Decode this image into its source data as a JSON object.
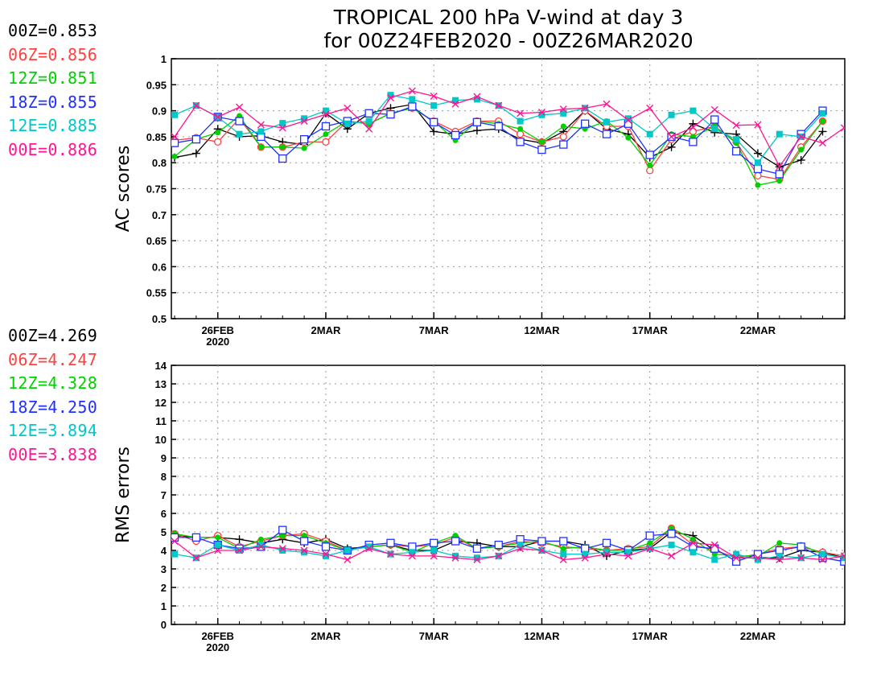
{
  "title": {
    "line1": "TROPICAL 200 hPa V-wind at day 3",
    "line2": "for 00Z24FEB2020 - 00Z26MAR2020"
  },
  "colors": {
    "00Z": "#000000",
    "06Z": "#ff4040",
    "12Z": "#00d000",
    "18Z": "#2030ff",
    "12E": "#00c8c8",
    "00E": "#ff1493"
  },
  "chart_data": [
    {
      "type": "line",
      "ylabel": "AC scores",
      "ylim": [
        0.5,
        1.0
      ],
      "yticks": [
        "0.5",
        "0.55",
        "0.6",
        "0.65",
        "0.7",
        "0.75",
        "0.8",
        "0.85",
        "0.9",
        "0.95",
        "1"
      ],
      "xticks": [
        {
          "day": 2,
          "label": "26FEB",
          "sublabel": "2020"
        },
        {
          "day": 7,
          "label": "2MAR",
          "sublabel": ""
        },
        {
          "day": 12,
          "label": "7MAR",
          "sublabel": ""
        },
        {
          "day": 17,
          "label": "12MAR",
          "sublabel": ""
        },
        {
          "day": 22,
          "label": "17MAR",
          "sublabel": ""
        },
        {
          "day": 27,
          "label": "22MAR",
          "sublabel": ""
        }
      ],
      "xlim_days": [
        0,
        31
      ],
      "grid": true,
      "legend": [
        {
          "key": "00Z",
          "text": "00Z=0.853"
        },
        {
          "key": "06Z",
          "text": "06Z=0.856"
        },
        {
          "key": "12Z",
          "text": "12Z=0.851"
        },
        {
          "key": "18Z",
          "text": "18Z=0.855"
        },
        {
          "key": "12E",
          "text": "12E=0.885"
        },
        {
          "key": "00E",
          "text": "00E=0.886"
        }
      ],
      "series": [
        {
          "key": "00Z",
          "marker": "plus",
          "values": [
            0.81,
            0.818,
            0.865,
            0.85,
            0.852,
            0.84,
            0.835,
            0.895,
            0.865,
            0.895,
            0.905,
            0.912,
            0.86,
            0.855,
            0.862,
            0.865,
            0.845,
            0.838,
            0.86,
            0.9,
            0.865,
            0.855,
            0.81,
            0.83,
            0.875,
            0.858,
            0.855,
            0.818,
            0.792,
            0.805,
            0.86
          ]
        },
        {
          "key": "06Z",
          "marker": "circle",
          "values": [
            0.843,
            0.848,
            0.84,
            0.885,
            0.83,
            0.83,
            0.84,
            0.84,
            0.88,
            0.875,
            0.895,
            0.905,
            0.88,
            0.86,
            0.88,
            0.88,
            0.855,
            0.84,
            0.85,
            0.9,
            0.87,
            0.87,
            0.785,
            0.845,
            0.86,
            0.87,
            0.84,
            0.775,
            0.768,
            0.83,
            0.88
          ]
        },
        {
          "key": "12Z",
          "marker": "dot",
          "values": [
            0.812,
            0.845,
            0.858,
            0.89,
            0.83,
            0.83,
            0.828,
            0.855,
            0.88,
            0.875,
            0.895,
            0.905,
            0.88,
            0.843,
            0.88,
            0.875,
            0.865,
            0.84,
            0.87,
            0.865,
            0.88,
            0.848,
            0.795,
            0.855,
            0.85,
            0.87,
            0.838,
            0.757,
            0.765,
            0.825,
            0.88
          ]
        },
        {
          "key": "18Z",
          "marker": "square",
          "values": [
            0.838,
            0.845,
            0.888,
            0.88,
            0.85,
            0.808,
            0.845,
            0.87,
            0.88,
            0.895,
            0.893,
            0.908,
            0.878,
            0.853,
            0.878,
            0.87,
            0.84,
            0.825,
            0.835,
            0.875,
            0.855,
            0.875,
            0.815,
            0.85,
            0.84,
            0.883,
            0.822,
            0.788,
            0.778,
            0.855,
            0.9
          ]
        },
        {
          "key": "12E",
          "marker": "filled-square",
          "values": [
            0.892,
            0.91,
            0.888,
            0.855,
            0.86,
            0.876,
            0.885,
            0.9,
            0.875,
            0.88,
            0.93,
            0.922,
            0.91,
            0.92,
            0.922,
            0.91,
            0.88,
            0.892,
            0.895,
            0.905,
            0.878,
            0.885,
            0.855,
            0.892,
            0.9,
            0.865,
            0.845,
            0.8,
            0.855,
            0.85,
            0.895
          ]
        },
        {
          "key": "00E",
          "marker": "x",
          "values": [
            0.85,
            0.91,
            0.888,
            0.907,
            0.873,
            0.867,
            0.88,
            0.893,
            0.905,
            0.865,
            0.925,
            0.938,
            0.928,
            0.913,
            0.927,
            0.91,
            0.895,
            0.897,
            0.903,
            0.905,
            0.913,
            0.882,
            0.905,
            0.85,
            0.868,
            0.902,
            0.872,
            0.873,
            0.793,
            0.85,
            0.838,
            0.867
          ]
        }
      ]
    },
    {
      "type": "line",
      "ylabel": "RMS errors",
      "ylim": [
        0,
        14
      ],
      "yticks": [
        "0",
        "1",
        "2",
        "3",
        "4",
        "5",
        "6",
        "7",
        "8",
        "9",
        "10",
        "11",
        "12",
        "13",
        "14"
      ],
      "xticks": [
        {
          "day": 2,
          "label": "26FEB",
          "sublabel": "2020"
        },
        {
          "day": 7,
          "label": "2MAR",
          "sublabel": ""
        },
        {
          "day": 12,
          "label": "7MAR",
          "sublabel": ""
        },
        {
          "day": 17,
          "label": "12MAR",
          "sublabel": ""
        },
        {
          "day": 22,
          "label": "17MAR",
          "sublabel": ""
        },
        {
          "day": 27,
          "label": "22MAR",
          "sublabel": ""
        }
      ],
      "xlim_days": [
        0,
        31
      ],
      "grid": true,
      "legend": [
        {
          "key": "00Z",
          "text": "00Z=4.269"
        },
        {
          "key": "06Z",
          "text": "06Z=4.247"
        },
        {
          "key": "12Z",
          "text": "12Z=4.328"
        },
        {
          "key": "18Z",
          "text": "18Z=4.250"
        },
        {
          "key": "12E",
          "text": "12E=3.894"
        },
        {
          "key": "00E",
          "text": "00E=3.838"
        }
      ],
      "series": [
        {
          "key": "00Z",
          "marker": "plus",
          "values": [
            4.8,
            4.7,
            4.7,
            4.6,
            4.4,
            4.6,
            4.4,
            4.6,
            4.1,
            4.2,
            4.3,
            4.0,
            4.0,
            4.5,
            4.4,
            4.2,
            4.2,
            4.5,
            4.5,
            4.3,
            3.7,
            4.0,
            4.1,
            5.0,
            4.8,
            4.0,
            3.6,
            3.6,
            3.6,
            4.0,
            3.9,
            3.6
          ]
        },
        {
          "key": "06Z",
          "marker": "circle",
          "values": [
            4.9,
            4.5,
            4.8,
            4.2,
            4.5,
            4.8,
            4.9,
            4.5,
            4.0,
            4.2,
            4.3,
            4.2,
            4.3,
            4.7,
            4.1,
            4.2,
            4.5,
            4.4,
            4.2,
            4.1,
            4.0,
            4.1,
            4.2,
            5.2,
            4.3,
            4.0,
            3.6,
            3.8,
            4.1,
            4.2,
            3.9,
            3.7
          ]
        },
        {
          "key": "12Z",
          "marker": "dot",
          "values": [
            4.9,
            4.7,
            4.7,
            4.1,
            4.6,
            4.8,
            4.8,
            4.4,
            4.0,
            4.2,
            4.3,
            3.9,
            4.4,
            4.8,
            4.1,
            4.2,
            4.4,
            4.5,
            4.1,
            4.2,
            4.0,
            4.0,
            4.4,
            5.2,
            4.6,
            3.8,
            3.7,
            3.7,
            4.4,
            4.3,
            3.8,
            3.6
          ]
        },
        {
          "key": "18Z",
          "marker": "square",
          "values": [
            4.7,
            4.7,
            4.3,
            4.1,
            4.2,
            5.1,
            4.5,
            4.2,
            4.0,
            4.3,
            4.4,
            4.2,
            4.4,
            4.5,
            4.1,
            4.3,
            4.6,
            4.5,
            4.5,
            4.1,
            4.4,
            4.0,
            4.8,
            4.9,
            4.2,
            4.1,
            3.4,
            3.8,
            4.0,
            4.2,
            3.6,
            3.4
          ]
        },
        {
          "key": "12E",
          "marker": "filled-square",
          "values": [
            3.8,
            3.6,
            4.3,
            4.0,
            4.3,
            4.0,
            3.9,
            3.7,
            4.0,
            4.2,
            3.8,
            3.9,
            4.0,
            3.7,
            3.6,
            3.7,
            4.3,
            4.0,
            3.8,
            3.8,
            3.9,
            3.9,
            4.1,
            4.3,
            3.9,
            3.5,
            3.8,
            3.5,
            3.7,
            3.6,
            3.8,
            3.6
          ]
        },
        {
          "key": "00E",
          "marker": "x",
          "values": [
            4.5,
            3.6,
            4.0,
            4.0,
            4.2,
            4.1,
            4.0,
            3.8,
            3.5,
            4.1,
            3.8,
            3.7,
            3.7,
            3.6,
            3.5,
            3.7,
            4.1,
            4.0,
            3.5,
            3.6,
            3.8,
            3.7,
            4.1,
            3.7,
            4.4,
            4.3,
            3.6,
            3.6,
            3.5,
            3.6,
            3.5,
            3.7
          ]
        }
      ]
    }
  ]
}
